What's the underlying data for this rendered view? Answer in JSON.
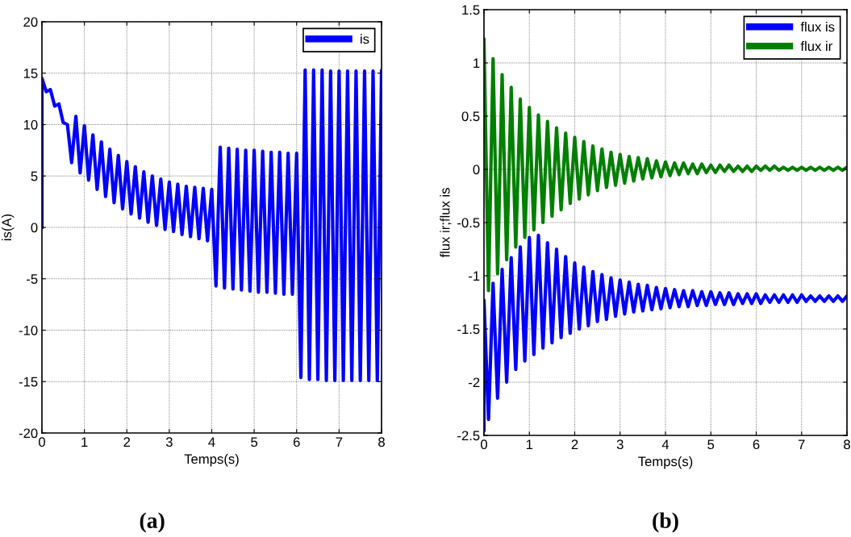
{
  "chart_data": [
    {
      "type": "line",
      "title": "(a)",
      "xlabel": "Temps(s)",
      "ylabel": "is(A)",
      "xlim": [
        0,
        8
      ],
      "ylim": [
        -20,
        20
      ],
      "xticks": [
        0,
        1,
        2,
        3,
        4,
        5,
        6,
        7,
        8
      ],
      "yticks": [
        -20,
        -15,
        -10,
        -5,
        0,
        5,
        10,
        15,
        20
      ],
      "grid": true,
      "legend": "top right",
      "series": [
        {
          "name": "is",
          "color": "#0000ff",
          "x": [
            0,
            0,
            0.1,
            0.2,
            0.3,
            0.4,
            0.5,
            0.6,
            0.7,
            0.8,
            0.9,
            1.0,
            1.1,
            1.2,
            1.3,
            1.4,
            1.5,
            1.6,
            1.7,
            1.8,
            1.9,
            2.0,
            2.1,
            2.2,
            2.3,
            2.4,
            2.5,
            2.6,
            2.7,
            2.8,
            2.9,
            3.0,
            3.1,
            3.2,
            3.3,
            3.4,
            3.5,
            3.6,
            3.7,
            3.8,
            3.9,
            4.0,
            4.1,
            4.2,
            4.3,
            4.4,
            4.5,
            4.6,
            4.7,
            4.8,
            4.9,
            5.0,
            5.1,
            5.2,
            5.3,
            5.4,
            5.5,
            5.6,
            5.7,
            5.8,
            5.9,
            6.0,
            6.1,
            6.2,
            6.3,
            6.4,
            6.5,
            6.6,
            6.7,
            6.8,
            6.9,
            7.0,
            7.1,
            7.2,
            7.3,
            7.4,
            7.5,
            7.6,
            7.7,
            7.8,
            7.9,
            8.0
          ],
          "values": [
            0,
            14.5,
            13.2,
            13.4,
            11.8,
            12.0,
            10.2,
            10.0,
            6.3,
            10.8,
            5.3,
            9.9,
            4.6,
            9.0,
            3.7,
            8.3,
            3.0,
            7.6,
            2.4,
            7.0,
            1.8,
            6.4,
            1.3,
            5.9,
            0.9,
            5.4,
            0.5,
            5.0,
            0.2,
            4.7,
            -0.2,
            4.4,
            -0.4,
            4.2,
            -0.7,
            4.0,
            -0.9,
            3.9,
            -1.1,
            3.8,
            -1.3,
            3.7,
            -5.7,
            7.8,
            -5.9,
            7.7,
            -6.0,
            7.6,
            -6.1,
            7.5,
            -6.2,
            7.5,
            -6.3,
            7.4,
            -6.3,
            7.3,
            -6.4,
            7.3,
            -6.5,
            7.2,
            -6.5,
            7.2,
            -14.6,
            15.3,
            -14.8,
            15.3,
            -14.8,
            15.3,
            -14.9,
            15.2,
            -14.9,
            15.2,
            -14.9,
            15.2,
            -14.9,
            15.2,
            -14.9,
            15.2,
            -14.9,
            15.2,
            -14.9,
            15.2
          ]
        }
      ]
    },
    {
      "type": "line",
      "title": "(b)",
      "xlabel": "Temps(s)",
      "ylabel": "flux ir;flux is",
      "xlim": [
        0,
        8
      ],
      "ylim": [
        -2.5,
        1.5
      ],
      "xticks": [
        0,
        1,
        2,
        3,
        4,
        5,
        6,
        7,
        8
      ],
      "yticks": [
        -2.5,
        -2,
        -1.5,
        -1,
        -0.5,
        0,
        0.5,
        1,
        1.5
      ],
      "grid": true,
      "legend": "top right",
      "x": [
        0,
        0.1,
        0.2,
        0.3,
        0.4,
        0.5,
        0.6,
        0.7,
        0.8,
        0.9,
        1.0,
        1.1,
        1.2,
        1.3,
        1.4,
        1.5,
        1.6,
        1.7,
        1.8,
        1.9,
        2.0,
        2.1,
        2.2,
        2.3,
        2.4,
        2.5,
        2.6,
        2.7,
        2.8,
        2.9,
        3.0,
        3.1,
        3.2,
        3.3,
        3.4,
        3.5,
        3.6,
        3.7,
        3.8,
        3.9,
        4.0,
        4.1,
        4.2,
        4.3,
        4.4,
        4.5,
        4.6,
        4.7,
        4.8,
        4.9,
        5.0,
        5.1,
        5.2,
        5.3,
        5.4,
        5.5,
        5.6,
        5.7,
        5.8,
        5.9,
        6.0,
        6.1,
        6.2,
        6.3,
        6.4,
        6.5,
        6.6,
        6.7,
        6.8,
        6.9,
        7.0,
        7.1,
        7.2,
        7.3,
        7.4,
        7.5,
        7.6,
        7.7,
        7.8,
        7.9,
        8.0
      ],
      "series": [
        {
          "name": "flux is",
          "color": "#0000ff",
          "x": [
            0,
            0,
            0.1,
            0.2,
            0.3,
            0.4,
            0.5,
            0.6,
            0.7,
            0.8,
            0.9,
            1.0,
            1.1,
            1.2,
            1.3,
            1.4,
            1.5,
            1.6,
            1.7,
            1.8,
            1.9,
            2.0,
            2.1,
            2.2,
            2.3,
            2.4,
            2.5,
            2.6,
            2.7,
            2.8,
            2.9,
            3.0,
            3.1,
            3.2,
            3.3,
            3.4,
            3.5,
            3.6,
            3.7,
            3.8,
            3.9,
            4.0,
            4.1,
            4.2,
            4.3,
            4.4,
            4.5,
            4.6,
            4.7,
            4.8,
            4.9,
            5.0,
            5.1,
            5.2,
            5.3,
            5.4,
            5.5,
            5.6,
            5.7,
            5.8,
            5.9,
            6.0,
            6.1,
            6.2,
            6.3,
            6.4,
            6.5,
            6.6,
            6.7,
            6.8,
            6.9,
            7.0,
            7.1,
            7.2,
            7.3,
            7.4,
            7.5,
            7.6,
            7.7,
            7.8,
            7.9,
            8.0
          ],
          "values": [
            -2.45,
            -1.23,
            -2.35,
            -1.07,
            -2.15,
            -0.94,
            -2.0,
            -0.83,
            -1.88,
            -0.73,
            -1.8,
            -0.64,
            -1.74,
            -0.62,
            -1.68,
            -0.69,
            -1.63,
            -0.75,
            -1.58,
            -0.82,
            -1.54,
            -0.88,
            -1.5,
            -0.92,
            -1.47,
            -0.96,
            -1.43,
            -0.99,
            -1.41,
            -1.02,
            -1.38,
            -1.04,
            -1.36,
            -1.06,
            -1.34,
            -1.08,
            -1.33,
            -1.09,
            -1.32,
            -1.11,
            -1.31,
            -1.12,
            -1.3,
            -1.13,
            -1.29,
            -1.14,
            -1.29,
            -1.14,
            -1.28,
            -1.15,
            -1.28,
            -1.15,
            -1.27,
            -1.16,
            -1.27,
            -1.16,
            -1.27,
            -1.17,
            -1.26,
            -1.17,
            -1.26,
            -1.17,
            -1.26,
            -1.18,
            -1.25,
            -1.18,
            -1.25,
            -1.18,
            -1.25,
            -1.18,
            -1.25,
            -1.18,
            -1.24,
            -1.19,
            -1.24,
            -1.19,
            -1.24,
            -1.19,
            -1.24,
            -1.19,
            -1.24,
            -1.19
          ]
        },
        {
          "name": "flux ir",
          "color": "#008000",
          "values": [
            1.22,
            -1.14,
            1.04,
            -0.98,
            0.89,
            -0.85,
            0.77,
            -0.73,
            0.66,
            -0.64,
            0.58,
            -0.57,
            0.51,
            -0.5,
            0.45,
            -0.44,
            0.39,
            -0.38,
            0.34,
            -0.32,
            0.3,
            -0.28,
            0.26,
            -0.24,
            0.22,
            -0.2,
            0.19,
            -0.17,
            0.16,
            -0.15,
            0.14,
            -0.13,
            0.12,
            -0.11,
            0.11,
            -0.09,
            0.1,
            -0.08,
            0.08,
            -0.07,
            0.07,
            -0.06,
            0.06,
            -0.05,
            0.06,
            -0.04,
            0.05,
            -0.04,
            0.05,
            -0.03,
            0.04,
            -0.03,
            0.04,
            -0.02,
            0.04,
            -0.02,
            0.03,
            -0.02,
            0.03,
            -0.02,
            0.03,
            -0.01,
            0.03,
            -0.01,
            0.03,
            -0.01,
            0.02,
            -0.01,
            0.02,
            -0.01,
            0.02,
            -0.01,
            0.02,
            -0.01,
            0.02,
            -0.01,
            0.02,
            -0.01,
            0.02,
            -0.01,
            0.02
          ]
        }
      ]
    }
  ]
}
